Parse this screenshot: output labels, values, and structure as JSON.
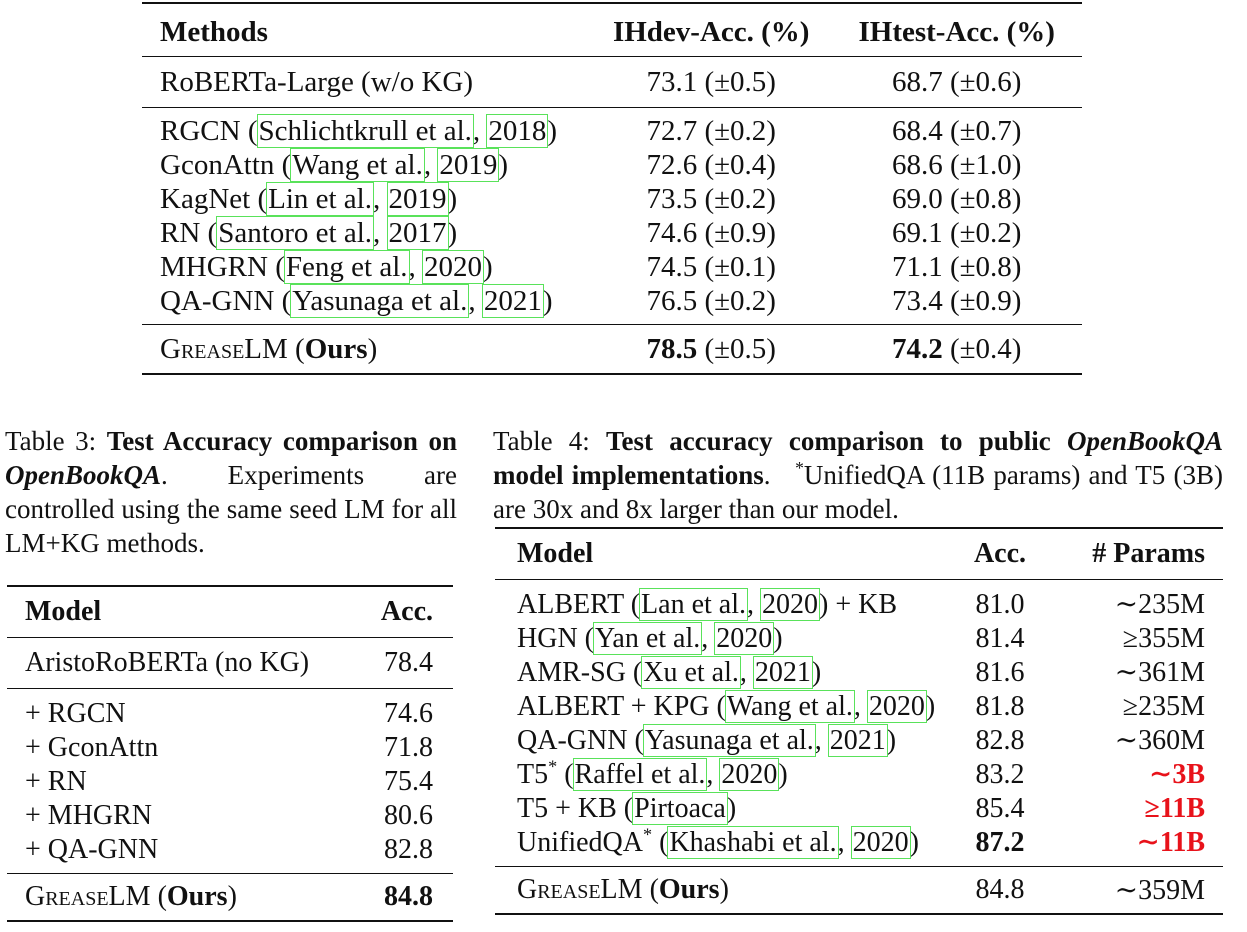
{
  "top_table": {
    "headers": [
      "Methods",
      "IHdev-Acc. (%)",
      "IHtest-Acc. (%)"
    ],
    "baseline": {
      "method": "RoBERTa-Large (w/o KG)",
      "dev": "73.1 (±0.5)",
      "test": "68.7 (±0.6)"
    },
    "rows": [
      {
        "name": "RGCN",
        "cite_author": "Schlichtkrull et al.",
        "cite_year": "2018",
        "dev": "72.7 (±0.2)",
        "test": "68.4 (±0.7)"
      },
      {
        "name": "GconAttn",
        "cite_author": "Wang et al.",
        "cite_year": "2019",
        "dev": "72.6 (±0.4)",
        "test": "68.6 (±1.0)"
      },
      {
        "name": "KagNet",
        "cite_author": "Lin et al.",
        "cite_year": "2019",
        "dev": "73.5 (±0.2)",
        "test": "69.0 (±0.8)"
      },
      {
        "name": "RN",
        "cite_author": "Santoro et al.",
        "cite_year": "2017",
        "dev": "74.6 (±0.9)",
        "test": "69.1 (±0.2)"
      },
      {
        "name": "MHGRN",
        "cite_author": "Feng et al.",
        "cite_year": "2020",
        "dev": "74.5 (±0.1)",
        "test": "71.1 (±0.8)"
      },
      {
        "name": "QA-GNN",
        "cite_author": "Yasunaga et al.",
        "cite_year": "2021",
        "dev": "76.5 (±0.2)",
        "test": "73.4 (±0.9)"
      }
    ],
    "ours": {
      "name_sc": "GreaseLM",
      "suffix": "Ours",
      "dev_bold": "78.5",
      "dev_rest": " (±0.5)",
      "test_bold": "74.2",
      "test_rest": " (±0.4)"
    }
  },
  "caption3": {
    "prefix": "Table 3: ",
    "bold1": "Test Accuracy comparison on ",
    "bold_italic": "OpenBookQA",
    "rest": ". Experiments are controlled using the same seed LM for all LM+KG methods."
  },
  "caption4": {
    "prefix": "Table 4:  ",
    "bold1": "Test accuracy comparison to public ",
    "bold_italic": "OpenBookQA",
    "bold2": " model implementations",
    "rest1": ".   ",
    "star": "*",
    "rest2": "UnifiedQA (11B params) and T5 (3B) are 30x and 8x larger than our model."
  },
  "table3": {
    "headers": [
      "Model",
      "Acc."
    ],
    "baseline": {
      "name": "AristoRoBERTa (no KG)",
      "acc": "78.4"
    },
    "rows": [
      {
        "name": "+ RGCN",
        "acc": "74.6"
      },
      {
        "name": "+ GconAttn",
        "acc": "71.8"
      },
      {
        "name": "+ RN",
        "acc": "75.4"
      },
      {
        "name": "+ MHGRN",
        "acc": "80.6"
      },
      {
        "name": "+ QA-GNN",
        "acc": "82.8"
      }
    ],
    "ours": {
      "name_sc": "GreaseLM",
      "suffix": "Ours",
      "acc": "84.8"
    }
  },
  "table4": {
    "headers": [
      "Model",
      "Acc.",
      "# Params"
    ],
    "rows": [
      {
        "name": "ALBERT",
        "star": "",
        "cite_author": "Lan et al.",
        "cite_year": "2020",
        "after": " + KB",
        "acc": "81.0",
        "params": "∼235M",
        "acc_bold": false,
        "params_red": false
      },
      {
        "name": "HGN",
        "star": "",
        "cite_author": "Yan et al.",
        "cite_year": "2020",
        "after": "",
        "acc": "81.4",
        "params": "≥355M",
        "acc_bold": false,
        "params_red": false
      },
      {
        "name": "AMR-SG",
        "star": "",
        "cite_author": "Xu et al.",
        "cite_year": "2021",
        "after": "",
        "acc": "81.6",
        "params": "∼361M",
        "acc_bold": false,
        "params_red": false
      },
      {
        "name": "ALBERT + KPG",
        "star": "",
        "cite_author": "Wang et al.",
        "cite_year": "2020",
        "after": "",
        "acc": "81.8",
        "params": "≥235M",
        "acc_bold": false,
        "params_red": false
      },
      {
        "name": "QA-GNN",
        "star": "",
        "cite_author": "Yasunaga et al.",
        "cite_year": "2021",
        "after": "",
        "acc": "82.8",
        "params": "∼360M",
        "acc_bold": false,
        "params_red": false
      },
      {
        "name": "T5",
        "star": "*",
        "cite_author": "Raffel et al.",
        "cite_year": "2020",
        "after": "",
        "acc": "83.2",
        "params": "∼3B",
        "acc_bold": false,
        "params_red": true
      },
      {
        "name": "T5 + KB",
        "star": "",
        "cite_author": "Pirtoaca",
        "cite_year": "",
        "after": "",
        "acc": "85.4",
        "params": "≥11B",
        "acc_bold": false,
        "params_red": true
      },
      {
        "name": "UnifiedQA",
        "star": "*",
        "cite_author": "Khashabi et al.",
        "cite_year": "2020",
        "after": "",
        "acc": "87.2",
        "params": "∼11B",
        "acc_bold": true,
        "params_red": true
      }
    ],
    "ours": {
      "name_sc": "GreaseLM",
      "suffix": "Ours",
      "acc": "84.8",
      "params": "∼359M"
    }
  },
  "colors": {
    "citation_box": "#59e25a",
    "highlight_red": "#e8121a",
    "rule": "#111111"
  }
}
